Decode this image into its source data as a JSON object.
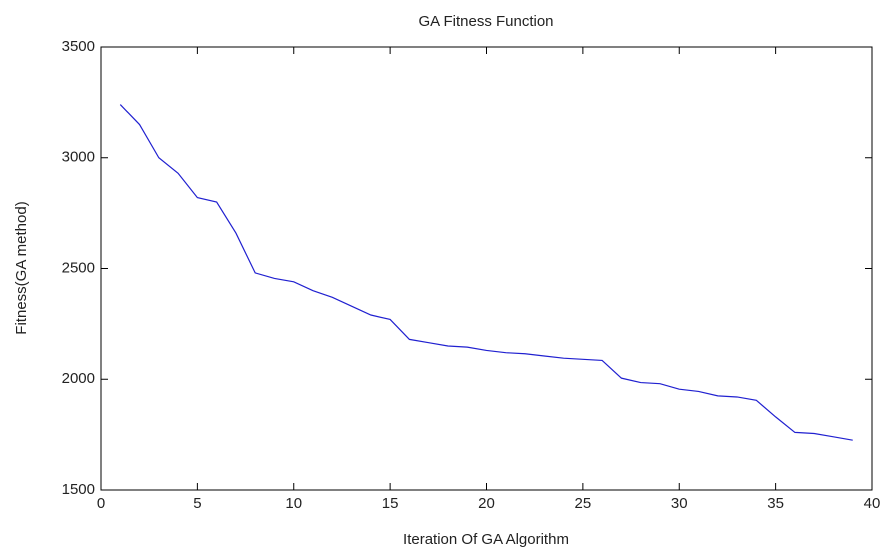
{
  "chart_data": {
    "type": "line",
    "title": "GA Fitness Function",
    "xlabel": "Iteration Of GA Algorithm",
    "ylabel": "Fitness(GA method)",
    "x": [
      1,
      2,
      3,
      4,
      5,
      6,
      7,
      8,
      9,
      10,
      11,
      12,
      13,
      14,
      15,
      16,
      17,
      18,
      19,
      20,
      21,
      22,
      23,
      24,
      25,
      26,
      27,
      28,
      29,
      30,
      31,
      32,
      33,
      34,
      35,
      36,
      37,
      38,
      39
    ],
    "series": [
      {
        "color": "#2020d0",
        "values": [
          3240,
          3150,
          3000,
          2930,
          2820,
          2800,
          2660,
          2480,
          2455,
          2440,
          2400,
          2370,
          2330,
          2290,
          2270,
          2180,
          2165,
          2150,
          2145,
          2130,
          2120,
          2115,
          2105,
          2095,
          2090,
          2085,
          2005,
          1985,
          1980,
          1955,
          1945,
          1925,
          1920,
          1905,
          1830,
          1760,
          1755,
          1740,
          1725
        ]
      }
    ],
    "xlim": [
      0,
      40
    ],
    "xticks": [
      0,
      5,
      10,
      15,
      20,
      25,
      30,
      35,
      40
    ],
    "ylim": [
      1500,
      3500
    ],
    "yticks": [
      1500,
      2000,
      2500,
      3000,
      3500
    ],
    "grid": false
  }
}
